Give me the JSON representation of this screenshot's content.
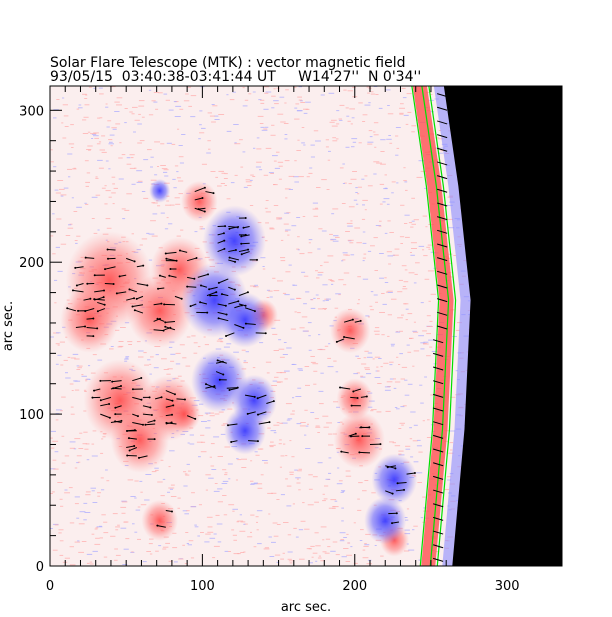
{
  "chart_data": {
    "type": "heatmap",
    "title": "Solar Flare Telescope (MTK) : vector magnetic field",
    "subtitle": "93/05/15  03:40:38-03:41:44 UT     W14'27''  N 0'34''",
    "xlabel": "arc sec.",
    "ylabel": "arc sec.",
    "xlim": [
      0,
      336
    ],
    "ylim": [
      0,
      316
    ],
    "xticks": [
      0,
      100,
      200,
      300
    ],
    "yticks": [
      0,
      100,
      200,
      300
    ],
    "colors": {
      "positive": "#ff5a5a",
      "negative": "#4646ff",
      "contour": "#00e000",
      "vector": "#000000",
      "off_disk": "#000000"
    },
    "positive_regions": [
      {
        "x": 39,
        "y": 188,
        "r": 24
      },
      {
        "x": 26,
        "y": 162,
        "r": 16
      },
      {
        "x": 72,
        "y": 168,
        "r": 18
      },
      {
        "x": 85,
        "y": 195,
        "r": 16
      },
      {
        "x": 98,
        "y": 240,
        "r": 10
      },
      {
        "x": 46,
        "y": 109,
        "r": 20
      },
      {
        "x": 78,
        "y": 104,
        "r": 16
      },
      {
        "x": 88,
        "y": 100,
        "r": 9
      },
      {
        "x": 59,
        "y": 83,
        "r": 16
      },
      {
        "x": 197,
        "y": 155,
        "r": 11
      },
      {
        "x": 203,
        "y": 83,
        "r": 14
      },
      {
        "x": 200,
        "y": 110,
        "r": 10
      },
      {
        "x": 72,
        "y": 30,
        "r": 10
      },
      {
        "x": 226,
        "y": 17,
        "r": 8
      },
      {
        "x": 140,
        "y": 165,
        "r": 8
      }
    ],
    "negative_regions": [
      {
        "x": 121,
        "y": 214,
        "r": 18
      },
      {
        "x": 108,
        "y": 175,
        "r": 19
      },
      {
        "x": 128,
        "y": 162,
        "r": 14
      },
      {
        "x": 111,
        "y": 122,
        "r": 16
      },
      {
        "x": 134,
        "y": 109,
        "r": 13
      },
      {
        "x": 128,
        "y": 89,
        "r": 12
      },
      {
        "x": 72,
        "y": 247,
        "r": 6
      },
      {
        "x": 226,
        "y": 57,
        "r": 13
      },
      {
        "x": 220,
        "y": 30,
        "r": 12
      }
    ],
    "limb": [
      {
        "x": 258,
        "y": 316
      },
      {
        "x": 268,
        "y": 250
      },
      {
        "x": 276,
        "y": 175
      },
      {
        "x": 272,
        "y": 90
      },
      {
        "x": 264,
        "y": 0
      }
    ]
  }
}
